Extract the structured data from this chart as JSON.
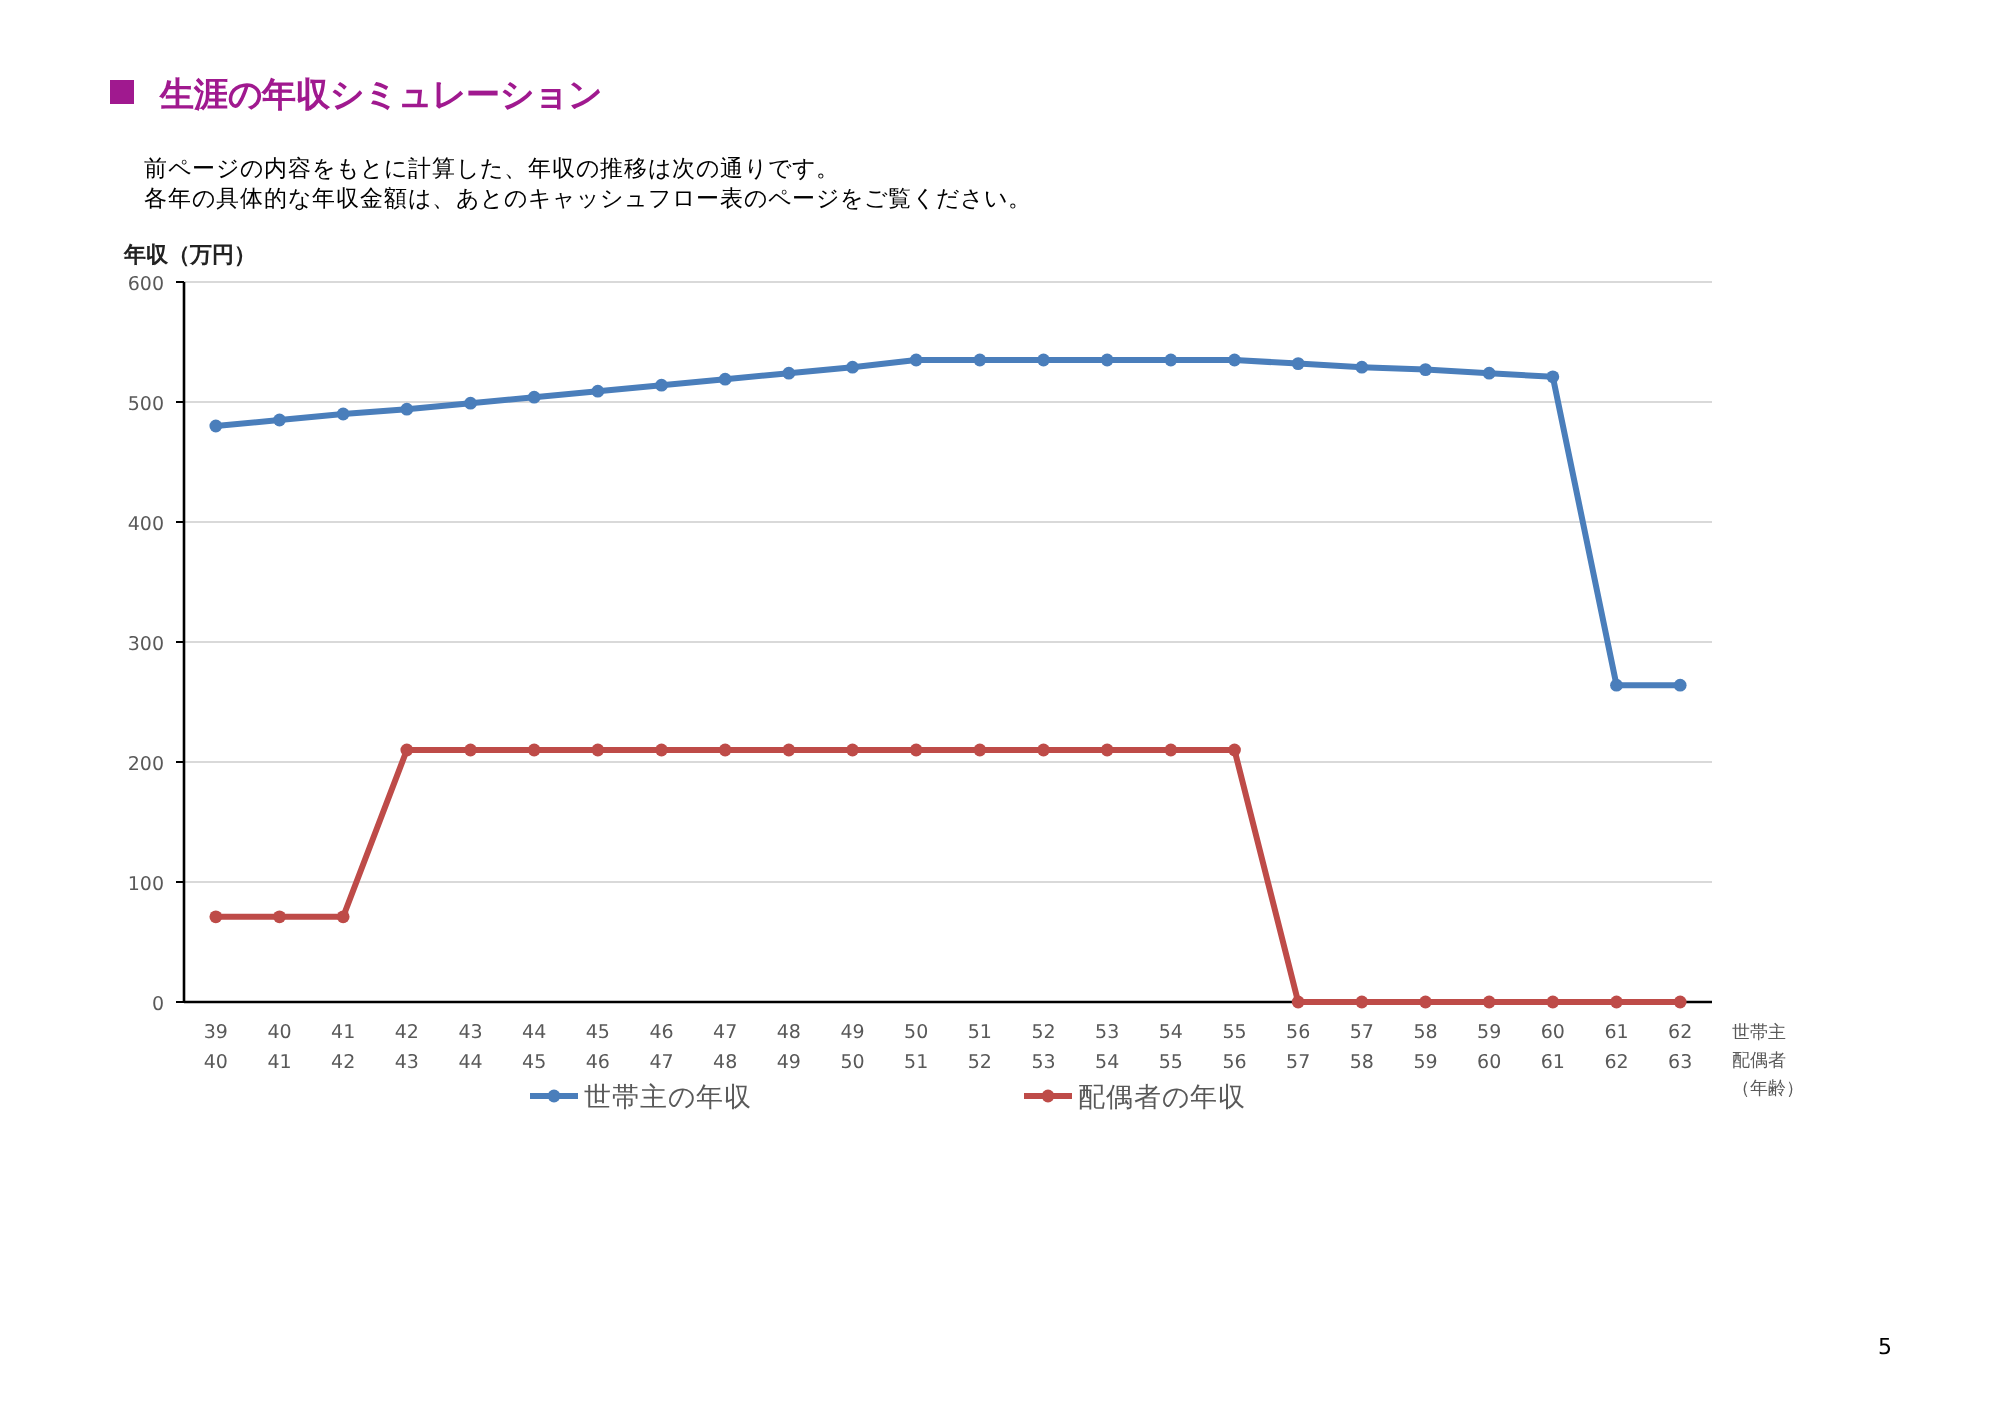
{
  "chart_data": {
    "type": "line",
    "title": "生涯の年収シミュレーション",
    "subtitle": "前ページの内容をもとに計算した、年収の推移は次の通りです。",
    "ylabel": "年収（万円）",
    "xlabel": "世帯主",
    "categories": [
      "39\n40",
      "40\n41",
      "41\n42",
      "42\n43",
      "43\n44",
      "44\n45",
      "45\n46",
      "46\n47",
      "47\n48",
      "48\n49",
      "49\n50",
      "50\n51",
      "51\n52",
      "52\n53",
      "53\n54",
      "54\n55",
      "55\n56",
      "56\n57",
      "57\n58",
      "58\n59",
      "59\n60",
      "60\n61",
      "61\n62",
      "62\n63"
    ],
    "series": [
      {
        "name": "世帯主の年収",
        "color": "#4a7ebb",
        "values": [
          480,
          485,
          490,
          494,
          499,
          504,
          509,
          514,
          519,
          524,
          529,
          535,
          535,
          535,
          535,
          535,
          535,
          532,
          529,
          527,
          524,
          521,
          264,
          264
        ]
      },
      {
        "name": "配偶者の年収",
        "color": "#be4b48",
        "values": [
          71,
          71,
          71,
          210,
          210,
          210,
          210,
          210,
          210,
          210,
          210,
          210,
          210,
          210,
          210,
          210,
          210,
          0,
          0,
          0,
          0,
          0,
          0,
          0
        ]
      }
    ],
    "ylim": [
      0,
      600
    ],
    "yticks": [
      0,
      100,
      200,
      300,
      400,
      500,
      600
    ],
    "grid": "y",
    "marker": "circle",
    "line_style": "solid",
    "legend": "bottom",
    "annotations": [
      "各年の具体的な年収金額は、あとのキャッシュフロー表のページをご覧ください。",
      "配偶者",
      "（年齢）",
      "5"
    ]
  }
}
